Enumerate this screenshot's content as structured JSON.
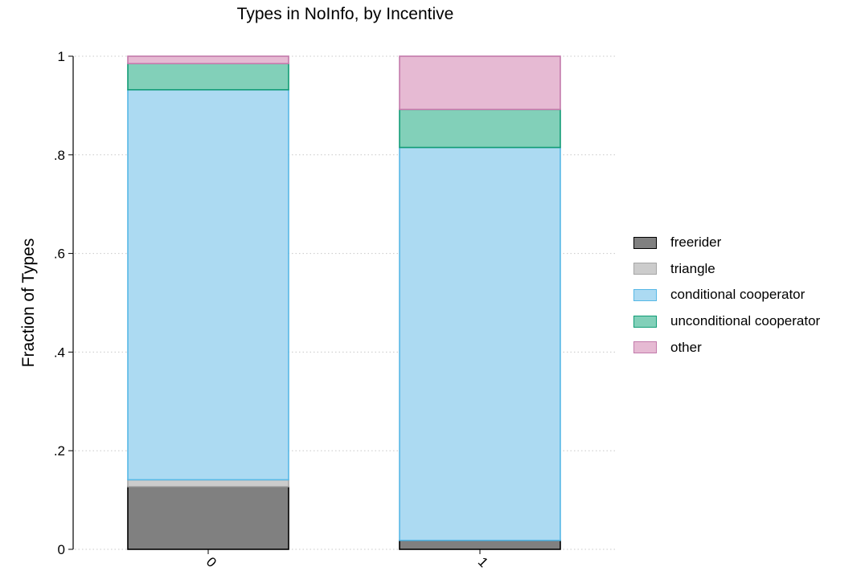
{
  "chart_data": {
    "type": "bar",
    "stacked": true,
    "title": "Types in NoInfo, by Incentive",
    "xlabel": "",
    "ylabel": "Fraction of Types",
    "categories": [
      "0",
      "1"
    ],
    "ylim": [
      0,
      1
    ],
    "yticks": [
      {
        "value": 0,
        "label": "0"
      },
      {
        "value": 0.2,
        "label": ".2"
      },
      {
        "value": 0.4,
        "label": ".4"
      },
      {
        "value": 0.6,
        "label": ".6"
      },
      {
        "value": 0.8,
        "label": ".8"
      },
      {
        "value": 1,
        "label": "1"
      }
    ],
    "grid": true,
    "legend_position": "right",
    "series": [
      {
        "name": "freerider",
        "values": [
          0.127,
          0.018
        ],
        "fill": "#808080",
        "stroke": "#000000"
      },
      {
        "name": "triangle",
        "values": [
          0.014,
          0.0
        ],
        "fill": "#cccccc",
        "stroke": "#a6a6a6"
      },
      {
        "name": "conditional cooperator",
        "values": [
          0.791,
          0.797
        ],
        "fill": "#acdaf2",
        "stroke": "#57b8e6"
      },
      {
        "name": "unconditional cooperator",
        "values": [
          0.053,
          0.077
        ],
        "fill": "#82d0b9",
        "stroke": "#119c76"
      },
      {
        "name": "other",
        "values": [
          0.015,
          0.108
        ],
        "fill": "#e6bad3",
        "stroke": "#c37aab"
      }
    ]
  }
}
